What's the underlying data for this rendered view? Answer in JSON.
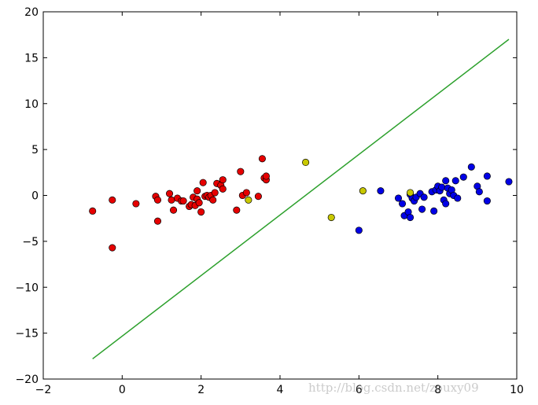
{
  "chart_data": {
    "type": "scatter",
    "title": "",
    "xlabel": "",
    "ylabel": "",
    "xlim": [
      -2,
      10
    ],
    "ylim": [
      -20,
      20
    ],
    "grid": false,
    "legend": "none",
    "x_ticks": [
      -2,
      0,
      2,
      4,
      6,
      8,
      10
    ],
    "y_ticks": [
      -20,
      -15,
      -10,
      -5,
      0,
      5,
      10,
      15,
      20
    ],
    "x_tick_labels": [
      "−2",
      "0",
      "2",
      "4",
      "6",
      "8",
      "10"
    ],
    "y_tick_labels": [
      "−20",
      "−15",
      "−10",
      "−5",
      "0",
      "5",
      "10",
      "15",
      "20"
    ],
    "series": [
      {
        "kind": "scatter",
        "color": "#e60000",
        "points": [
          [
            -0.75,
            -1.7
          ],
          [
            -0.25,
            -0.5
          ],
          [
            -0.25,
            -5.7
          ],
          [
            0.35,
            -0.9
          ],
          [
            0.85,
            -0.1
          ],
          [
            0.9,
            -0.5
          ],
          [
            0.9,
            -2.8
          ],
          [
            1.2,
            0.2
          ],
          [
            1.25,
            -0.5
          ],
          [
            1.3,
            -1.6
          ],
          [
            1.4,
            -0.3
          ],
          [
            1.5,
            -0.6
          ],
          [
            1.55,
            -0.6
          ],
          [
            1.7,
            -1.2
          ],
          [
            1.75,
            -1.0
          ],
          [
            1.8,
            -0.2
          ],
          [
            1.85,
            -1.1
          ],
          [
            1.9,
            -0.4
          ],
          [
            1.9,
            0.5
          ],
          [
            1.95,
            -0.8
          ],
          [
            2.0,
            -1.8
          ],
          [
            2.05,
            1.4
          ],
          [
            2.1,
            -0.1
          ],
          [
            2.15,
            0.0
          ],
          [
            2.2,
            -0.2
          ],
          [
            2.25,
            0.0
          ],
          [
            2.3,
            -0.5
          ],
          [
            2.35,
            0.3
          ],
          [
            2.4,
            1.3
          ],
          [
            2.5,
            1.1
          ],
          [
            2.55,
            0.7
          ],
          [
            2.55,
            1.7
          ],
          [
            2.9,
            -1.6
          ],
          [
            3.0,
            2.6
          ],
          [
            3.05,
            0.0
          ],
          [
            3.15,
            0.3
          ],
          [
            3.45,
            -0.1
          ],
          [
            3.55,
            4.0
          ],
          [
            3.6,
            1.9
          ],
          [
            3.65,
            1.7
          ],
          [
            3.65,
            2.1
          ]
        ]
      },
      {
        "kind": "scatter",
        "color": "#0000e6",
        "points": [
          [
            6.0,
            -3.8
          ],
          [
            6.55,
            0.5
          ],
          [
            7.0,
            -0.3
          ],
          [
            7.1,
            -0.9
          ],
          [
            7.15,
            -2.2
          ],
          [
            7.25,
            -1.8
          ],
          [
            7.3,
            -2.4
          ],
          [
            7.3,
            0.1
          ],
          [
            7.35,
            -0.3
          ],
          [
            7.4,
            -0.6
          ],
          [
            7.45,
            -0.2
          ],
          [
            7.55,
            0.2
          ],
          [
            7.6,
            -1.5
          ],
          [
            7.65,
            -0.2
          ],
          [
            7.85,
            0.4
          ],
          [
            7.9,
            -1.7
          ],
          [
            7.95,
            0.6
          ],
          [
            8.0,
            1.0
          ],
          [
            8.05,
            0.5
          ],
          [
            8.1,
            0.9
          ],
          [
            8.15,
            -0.5
          ],
          [
            8.2,
            1.6
          ],
          [
            8.2,
            -0.9
          ],
          [
            8.25,
            0.8
          ],
          [
            8.3,
            0.2
          ],
          [
            8.35,
            0.6
          ],
          [
            8.4,
            0.0
          ],
          [
            8.45,
            1.6
          ],
          [
            8.5,
            -0.3
          ],
          [
            8.65,
            2.0
          ],
          [
            8.85,
            3.1
          ],
          [
            9.0,
            1.0
          ],
          [
            9.05,
            0.4
          ],
          [
            9.25,
            2.1
          ],
          [
            9.25,
            -0.6
          ],
          [
            9.8,
            1.5
          ]
        ]
      },
      {
        "kind": "scatter",
        "color": "#c8c800",
        "points": [
          [
            3.2,
            -0.5
          ],
          [
            4.65,
            3.6
          ],
          [
            5.3,
            -2.4
          ],
          [
            6.1,
            0.5
          ],
          [
            7.3,
            0.3
          ]
        ]
      },
      {
        "kind": "line",
        "color": "#2ca02c",
        "points": [
          [
            -0.75,
            -17.8
          ],
          [
            9.8,
            17.0
          ]
        ]
      }
    ]
  },
  "watermark": "http://blog.csdn.net/zouxy09"
}
